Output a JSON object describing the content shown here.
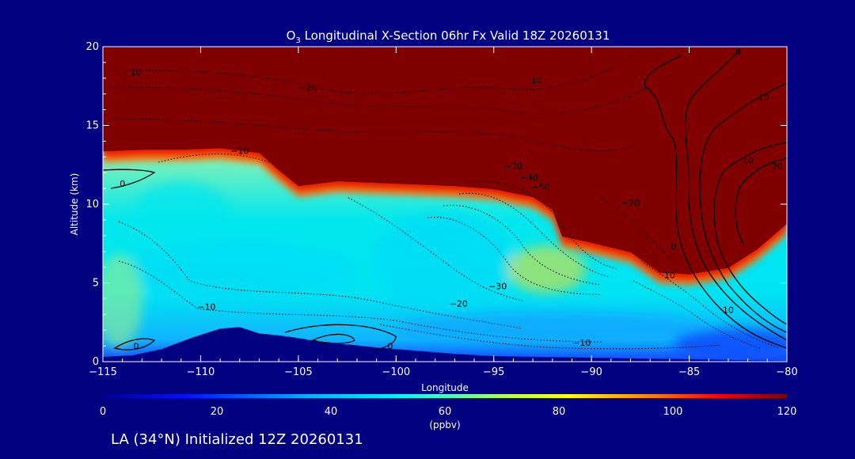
{
  "chart_data": {
    "type": "heatmap",
    "title": "O",
    "title_sub": "3",
    "title_rest": " Longitudinal X-Section 06hr  Fx Valid 18Z 20260131",
    "xlabel": "Longitude",
    "ylabel": "Altitude (km)",
    "xlim": [
      -115,
      -80
    ],
    "ylim": [
      0,
      20
    ],
    "x_ticks": [
      -115,
      -110,
      -105,
      -100,
      -95,
      -90,
      -85,
      -80
    ],
    "x_tick_labels": [
      "−115",
      "−110",
      "−105",
      "−100",
      "−95",
      "−90",
      "−85",
      "−80"
    ],
    "y_ticks": [
      0,
      5,
      10,
      15,
      20
    ],
    "y_tick_labels": [
      "0",
      "5",
      "10",
      "15",
      "20"
    ],
    "colorbar": {
      "range": [
        0,
        120
      ],
      "ticks": [
        0,
        20,
        40,
        60,
        80,
        100,
        120
      ],
      "tick_labels": [
        "0",
        "20",
        "40",
        "60",
        "80",
        "100",
        "120"
      ],
      "label": "(ppbv)"
    },
    "footer": "LA (34°N) Initialized 12Z 20260131",
    "tropopause_km": [
      [
        -115,
        13.2
      ],
      [
        -113,
        13.3
      ],
      [
        -111,
        13.3
      ],
      [
        -109,
        13.4
      ],
      [
        -107,
        13.1
      ],
      [
        -106,
        12.0
      ],
      [
        -105,
        11.0
      ],
      [
        -103,
        11.3
      ],
      [
        -101,
        11.2
      ],
      [
        -99,
        11.1
      ],
      [
        -97,
        11.0
      ],
      [
        -95,
        10.8
      ],
      [
        -93,
        10.3
      ],
      [
        -92,
        9.5
      ],
      [
        -91.5,
        7.8
      ],
      [
        -90,
        7.4
      ],
      [
        -88,
        6.8
      ],
      [
        -86.5,
        5.5
      ],
      [
        -85,
        5.4
      ],
      [
        -83,
        5.8
      ],
      [
        -81.5,
        7.0
      ],
      [
        -80,
        8.6
      ]
    ],
    "terrain_km": [
      [
        -115,
        0.3
      ],
      [
        -113.5,
        0.4
      ],
      [
        -112,
        0.8
      ],
      [
        -110.5,
        1.5
      ],
      [
        -109,
        2.1
      ],
      [
        -108,
        2.2
      ],
      [
        -107,
        1.8
      ],
      [
        -105.5,
        1.6
      ],
      [
        -104,
        1.3
      ],
      [
        -102.5,
        1.1
      ],
      [
        -101,
        0.9
      ],
      [
        -99,
        0.7
      ],
      [
        -97,
        0.5
      ],
      [
        -95,
        0.35
      ],
      [
        -90,
        0.25
      ],
      [
        -85,
        0.15
      ],
      [
        -80,
        0.05
      ]
    ],
    "contour_labels": [
      {
        "text": "−10",
        "lon": -113.5,
        "alt": 18.2
      },
      {
        "text": "−20",
        "lon": -104.5,
        "alt": 17.2
      },
      {
        "text": "−10",
        "lon": -93.0,
        "alt": 17.7
      },
      {
        "text": "0",
        "lon": -82.5,
        "alt": 19.5
      },
      {
        "text": "10",
        "lon": -81.2,
        "alt": 16.6
      },
      {
        "text": "−10",
        "lon": -108.0,
        "alt": 13.2
      },
      {
        "text": "0",
        "lon": -114.0,
        "alt": 11.1
      },
      {
        "text": "−30",
        "lon": -94.0,
        "alt": 12.2
      },
      {
        "text": "−40",
        "lon": -93.2,
        "alt": 11.5
      },
      {
        "text": "−50",
        "lon": -92.6,
        "alt": 10.9
      },
      {
        "text": "−20",
        "lon": -88.0,
        "alt": 9.9
      },
      {
        "text": "10",
        "lon": -82.0,
        "alt": 12.6
      },
      {
        "text": "20",
        "lon": -80.5,
        "alt": 12.2
      },
      {
        "text": "0",
        "lon": -85.8,
        "alt": 7.1
      },
      {
        "text": "10",
        "lon": -86.0,
        "alt": 5.3
      },
      {
        "text": "−30",
        "lon": -94.8,
        "alt": 4.6
      },
      {
        "text": "−20",
        "lon": -96.8,
        "alt": 3.5
      },
      {
        "text": "−10",
        "lon": -109.7,
        "alt": 3.3
      },
      {
        "text": "10",
        "lon": -83.0,
        "alt": 3.1
      },
      {
        "text": "0",
        "lon": -113.3,
        "alt": 0.8
      },
      {
        "text": "0",
        "lon": -100.3,
        "alt": 0.8
      },
      {
        "text": "−10",
        "lon": -90.5,
        "alt": 1.0
      }
    ]
  }
}
